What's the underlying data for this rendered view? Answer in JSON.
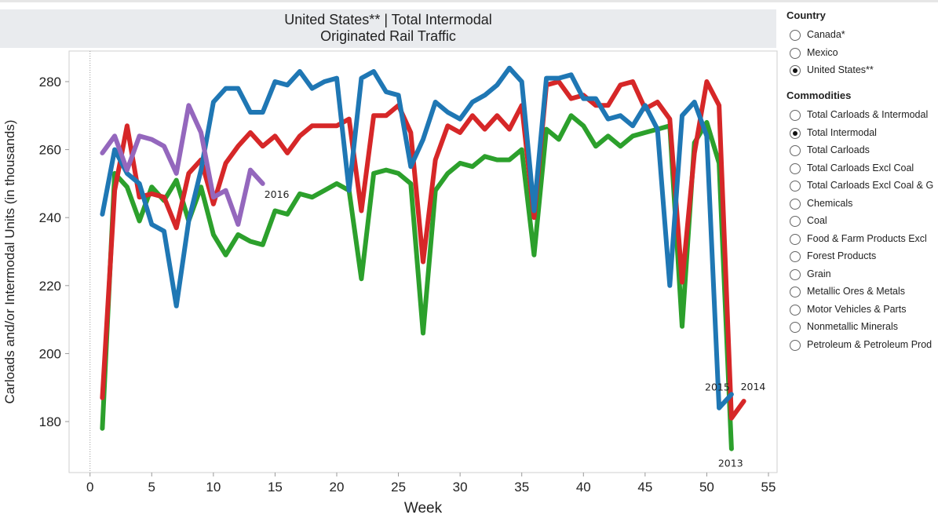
{
  "chart_data": {
    "type": "line",
    "title": "United States** | Total Intermodal",
    "subtitle": "Originated Rail Traffic",
    "xlabel": "Week",
    "ylabel": "Carloads and/or Intermodal Units (in thousands)",
    "xlim": [
      -1.7,
      55.7
    ],
    "ylim": [
      165,
      289
    ],
    "xticks": [
      0,
      5,
      10,
      15,
      20,
      25,
      30,
      35,
      40,
      45,
      50,
      55
    ],
    "yticks": [
      180,
      200,
      220,
      240,
      260,
      280
    ],
    "grid": false,
    "legend": "none",
    "series": [
      {
        "name": "2013",
        "color": "#2ca02c",
        "x": [
          1,
          2,
          3,
          4,
          5,
          6,
          7,
          8,
          9,
          10,
          11,
          12,
          13,
          14,
          15,
          16,
          17,
          18,
          19,
          20,
          21,
          22,
          23,
          24,
          25,
          26,
          27,
          28,
          29,
          30,
          31,
          32,
          33,
          34,
          35,
          36,
          37,
          38,
          39,
          40,
          41,
          42,
          43,
          44,
          45,
          46,
          47,
          48,
          49,
          50,
          51,
          52
        ],
        "values": [
          178,
          253,
          249,
          239,
          249,
          245,
          251,
          239,
          249,
          235,
          229,
          235,
          233,
          232,
          242,
          241,
          247,
          246,
          248,
          250,
          248,
          222,
          253,
          254,
          253,
          250,
          206,
          248,
          253,
          256,
          255,
          258,
          257,
          257,
          260,
          229,
          266,
          263,
          270,
          267,
          261,
          264,
          261,
          264,
          265,
          266,
          267,
          208,
          262,
          268,
          256,
          172
        ]
      },
      {
        "name": "2014",
        "color": "#d62728",
        "x": [
          1,
          2,
          3,
          4,
          5,
          6,
          7,
          8,
          9,
          10,
          11,
          12,
          13,
          14,
          15,
          16,
          17,
          18,
          19,
          20,
          21,
          22,
          23,
          24,
          25,
          26,
          27,
          28,
          29,
          30,
          31,
          32,
          33,
          34,
          35,
          36,
          37,
          38,
          39,
          40,
          41,
          42,
          43,
          44,
          45,
          46,
          47,
          48,
          49,
          50,
          51,
          52,
          53
        ],
        "values": [
          187,
          248,
          267,
          246,
          247,
          246,
          237,
          253,
          257,
          244,
          256,
          261,
          265,
          261,
          264,
          259,
          264,
          267,
          267,
          267,
          269,
          242,
          270,
          270,
          273,
          265,
          227,
          257,
          267,
          265,
          270,
          266,
          270,
          266,
          273,
          240,
          279,
          280,
          275,
          276,
          273,
          273,
          279,
          280,
          272,
          274,
          269,
          221,
          259,
          280,
          273,
          181,
          186
        ]
      },
      {
        "name": "2015",
        "color": "#1f77b4",
        "x": [
          1,
          2,
          3,
          4,
          5,
          6,
          7,
          8,
          9,
          10,
          11,
          12,
          13,
          14,
          15,
          16,
          17,
          18,
          19,
          20,
          21,
          22,
          23,
          24,
          25,
          26,
          27,
          28,
          29,
          30,
          31,
          32,
          33,
          34,
          35,
          36,
          37,
          38,
          39,
          40,
          41,
          42,
          43,
          44,
          45,
          46,
          47,
          48,
          49,
          50,
          51,
          52
        ],
        "values": [
          241,
          260,
          253,
          250,
          238,
          236,
          214,
          239,
          254,
          274,
          278,
          278,
          271,
          271,
          280,
          279,
          283,
          278,
          280,
          281,
          248,
          281,
          283,
          277,
          276,
          255,
          263,
          274,
          271,
          269,
          274,
          276,
          279,
          284,
          280,
          242,
          281,
          281,
          282,
          275,
          275,
          269,
          270,
          267,
          273,
          266,
          220,
          270,
          274,
          264,
          184,
          188
        ]
      },
      {
        "name": "2016",
        "color": "#9467bd",
        "x": [
          1,
          2,
          3,
          4,
          5,
          6,
          7,
          8,
          9,
          10,
          11,
          12,
          13,
          14
        ],
        "values": [
          259,
          264,
          254,
          264,
          263,
          261,
          253,
          273,
          265,
          246,
          248,
          238,
          254,
          250
        ]
      }
    ],
    "annotations": [
      {
        "text": "2016",
        "x": 14,
        "y": 250
      },
      {
        "text": "2015",
        "x": 52,
        "y": 188
      },
      {
        "text": "2014",
        "x": 53,
        "y": 186
      },
      {
        "text": "2013",
        "x": 52,
        "y": 172
      }
    ]
  },
  "panel": {
    "country_heading": "Country",
    "countries": [
      {
        "label": "Canada*",
        "checked": false
      },
      {
        "label": "Mexico",
        "checked": false
      },
      {
        "label": "United States**",
        "checked": true
      }
    ],
    "commodities_heading": "Commodities",
    "commodities": [
      {
        "label": "Total Carloads & Intermodal",
        "checked": false
      },
      {
        "label": "Total Intermodal",
        "checked": true
      },
      {
        "label": "Total Carloads",
        "checked": false
      },
      {
        "label": "Total Carloads Excl Coal",
        "checked": false
      },
      {
        "label": "Total Carloads Excl Coal & G",
        "checked": false
      },
      {
        "label": "Chemicals",
        "checked": false
      },
      {
        "label": "Coal",
        "checked": false
      },
      {
        "label": "Food & Farm Products Excl",
        "checked": false
      },
      {
        "label": "Forest Products",
        "checked": false
      },
      {
        "label": "Grain",
        "checked": false
      },
      {
        "label": "Metallic Ores & Metals",
        "checked": false
      },
      {
        "label": "Motor Vehicles & Parts",
        "checked": false
      },
      {
        "label": "Nonmetallic Minerals",
        "checked": false
      },
      {
        "label": "Petroleum & Petroleum Prod",
        "checked": false
      }
    ]
  }
}
